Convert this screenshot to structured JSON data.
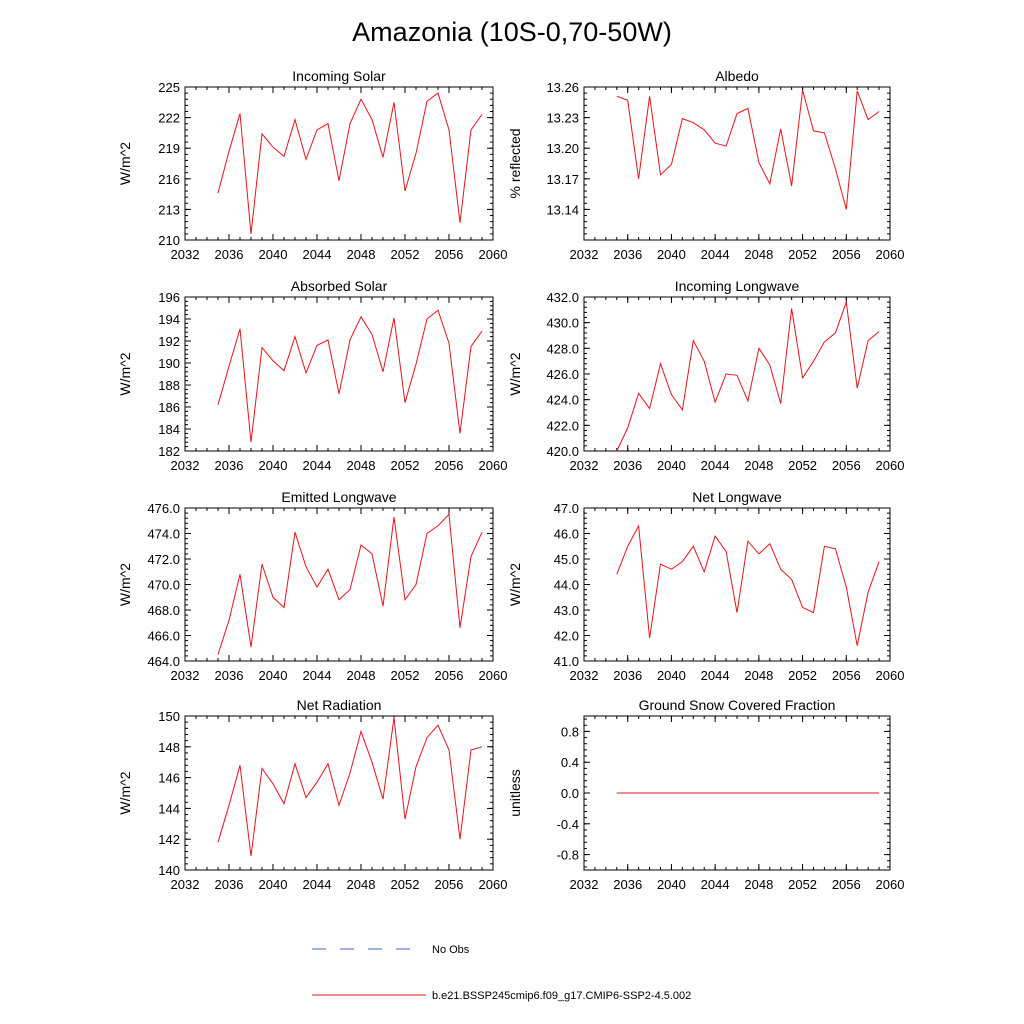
{
  "figure": {
    "title": "Amazonia (10S-0,70-50W)",
    "line_color": "#e8131a",
    "obs_color": "#3a5fcd"
  },
  "legend": {
    "entries": [
      {
        "label": "No Obs",
        "style": "dashed"
      },
      {
        "label": "b.e21.BSSP245cmip6.f09_g17.CMIP6-SSP2-4.5.002",
        "style": "solid"
      }
    ]
  },
  "chart_data": [
    {
      "type": "line",
      "title": "Incoming Solar",
      "ylabel": "W/m^2",
      "xlim": [
        2032,
        2060
      ],
      "xticks": [
        2032,
        2036,
        2040,
        2044,
        2048,
        2052,
        2056,
        2060
      ],
      "ylim": [
        210,
        225
      ],
      "yticks": [
        210,
        213,
        216,
        219,
        222,
        225
      ],
      "ydec": 0,
      "x": [
        2035,
        2036,
        2037,
        2038,
        2039,
        2040,
        2041,
        2042,
        2043,
        2044,
        2045,
        2046,
        2047,
        2048,
        2049,
        2050,
        2051,
        2052,
        2053,
        2054,
        2055,
        2056,
        2057,
        2058,
        2059
      ],
      "y": [
        214.6,
        218.7,
        222.4,
        210.6,
        220.4,
        219.1,
        218.2,
        221.8,
        217.9,
        220.8,
        221.4,
        215.8,
        221.4,
        223.8,
        221.8,
        218.1,
        223.5,
        214.8,
        218.5,
        223.6,
        224.4,
        220.8,
        211.7,
        220.8,
        222.3
      ]
    },
    {
      "type": "line",
      "title": "Albedo",
      "ylabel": "% reflected",
      "xlim": [
        2032,
        2060
      ],
      "xticks": [
        2032,
        2036,
        2040,
        2044,
        2048,
        2052,
        2056,
        2060
      ],
      "ylim": [
        13.11,
        13.26
      ],
      "yticks": [
        13.14,
        13.17,
        13.2,
        13.23,
        13.26
      ],
      "ydec": 2,
      "x": [
        2035,
        2036,
        2037,
        2038,
        2039,
        2040,
        2041,
        2042,
        2043,
        2044,
        2045,
        2046,
        2047,
        2048,
        2049,
        2050,
        2051,
        2052,
        2053,
        2054,
        2055,
        2056,
        2057,
        2058,
        2059
      ],
      "y": [
        13.251,
        13.247,
        13.17,
        13.251,
        13.174,
        13.184,
        13.229,
        13.225,
        13.218,
        13.205,
        13.202,
        13.234,
        13.239,
        13.186,
        13.165,
        13.219,
        13.163,
        13.257,
        13.217,
        13.215,
        13.18,
        13.14,
        13.256,
        13.228,
        13.236
      ]
    },
    {
      "type": "line",
      "title": "Absorbed Solar",
      "ylabel": "W/m^2",
      "xlim": [
        2032,
        2060
      ],
      "xticks": [
        2032,
        2036,
        2040,
        2044,
        2048,
        2052,
        2056,
        2060
      ],
      "ylim": [
        182,
        196
      ],
      "yticks": [
        182,
        184,
        186,
        188,
        190,
        192,
        194,
        196
      ],
      "ydec": 0,
      "x": [
        2035,
        2036,
        2037,
        2038,
        2039,
        2040,
        2041,
        2042,
        2043,
        2044,
        2045,
        2046,
        2047,
        2048,
        2049,
        2050,
        2051,
        2052,
        2053,
        2054,
        2055,
        2056,
        2057,
        2058,
        2059
      ],
      "y": [
        186.2,
        189.7,
        193.1,
        182.8,
        191.4,
        190.2,
        189.3,
        192.4,
        189.1,
        191.6,
        192.1,
        187.2,
        192.1,
        194.2,
        192.6,
        189.2,
        194.1,
        186.4,
        189.9,
        194.0,
        194.8,
        191.8,
        183.6,
        191.5,
        192.9
      ]
    },
    {
      "type": "line",
      "title": "Incoming Longwave",
      "ylabel": "W/m^2",
      "xlim": [
        2032,
        2060
      ],
      "xticks": [
        2032,
        2036,
        2040,
        2044,
        2048,
        2052,
        2056,
        2060
      ],
      "ylim": [
        420,
        432
      ],
      "yticks": [
        420,
        422,
        424,
        426,
        428,
        430,
        432
      ],
      "ydec": 1,
      "x": [
        2035,
        2036,
        2037,
        2038,
        2039,
        2040,
        2041,
        2042,
        2043,
        2044,
        2045,
        2046,
        2047,
        2048,
        2049,
        2050,
        2051,
        2052,
        2053,
        2054,
        2055,
        2056,
        2057,
        2058,
        2059
      ],
      "y": [
        420.0,
        421.8,
        424.5,
        423.3,
        426.8,
        424.4,
        423.2,
        428.6,
        427.0,
        423.8,
        426.0,
        425.9,
        423.9,
        428.0,
        426.7,
        423.7,
        431.1,
        425.7,
        427.0,
        428.5,
        429.2,
        431.6,
        424.9,
        428.6,
        429.3
      ]
    },
    {
      "type": "line",
      "title": "Emitted Longwave",
      "ylabel": "W/m^2",
      "xlim": [
        2032,
        2060
      ],
      "xticks": [
        2032,
        2036,
        2040,
        2044,
        2048,
        2052,
        2056,
        2060
      ],
      "ylim": [
        464,
        476
      ],
      "yticks": [
        464,
        466,
        468,
        470,
        472,
        474,
        476
      ],
      "ydec": 1,
      "x": [
        2035,
        2036,
        2037,
        2038,
        2039,
        2040,
        2041,
        2042,
        2043,
        2044,
        2045,
        2046,
        2047,
        2048,
        2049,
        2050,
        2051,
        2052,
        2053,
        2054,
        2055,
        2056,
        2057,
        2058,
        2059
      ],
      "y": [
        464.5,
        467.2,
        470.8,
        465.1,
        471.6,
        469.0,
        468.2,
        474.1,
        471.4,
        469.8,
        471.2,
        468.8,
        469.6,
        473.1,
        472.4,
        468.3,
        475.3,
        468.8,
        470.0,
        474.0,
        474.6,
        475.5,
        466.6,
        472.2,
        474.1
      ]
    },
    {
      "type": "line",
      "title": "Net Longwave",
      "ylabel": "W/m^2",
      "xlim": [
        2032,
        2060
      ],
      "xticks": [
        2032,
        2036,
        2040,
        2044,
        2048,
        2052,
        2056,
        2060
      ],
      "ylim": [
        41,
        47
      ],
      "yticks": [
        41,
        42,
        43,
        44,
        45,
        46,
        47
      ],
      "ydec": 1,
      "x": [
        2035,
        2036,
        2037,
        2038,
        2039,
        2040,
        2041,
        2042,
        2043,
        2044,
        2045,
        2046,
        2047,
        2048,
        2049,
        2050,
        2051,
        2052,
        2053,
        2054,
        2055,
        2056,
        2057,
        2058,
        2059
      ],
      "y": [
        44.4,
        45.5,
        46.3,
        41.9,
        44.8,
        44.6,
        44.9,
        45.5,
        44.5,
        45.9,
        45.3,
        42.9,
        45.7,
        45.2,
        45.6,
        44.6,
        44.2,
        43.1,
        42.9,
        45.5,
        45.4,
        43.9,
        41.6,
        43.7,
        44.9
      ]
    },
    {
      "type": "line",
      "title": "Net Radiation",
      "ylabel": "W/m^2",
      "xlim": [
        2032,
        2060
      ],
      "xticks": [
        2032,
        2036,
        2040,
        2044,
        2048,
        2052,
        2056,
        2060
      ],
      "ylim": [
        140,
        150
      ],
      "yticks": [
        140,
        142,
        144,
        146,
        148,
        150
      ],
      "ydec": 0,
      "x": [
        2035,
        2036,
        2037,
        2038,
        2039,
        2040,
        2041,
        2042,
        2043,
        2044,
        2045,
        2046,
        2047,
        2048,
        2049,
        2050,
        2051,
        2052,
        2053,
        2054,
        2055,
        2056,
        2057,
        2058,
        2059
      ],
      "y": [
        141.8,
        144.2,
        146.8,
        140.9,
        146.6,
        145.6,
        144.3,
        146.9,
        144.7,
        145.7,
        146.9,
        144.2,
        146.3,
        149.0,
        147.0,
        144.6,
        149.9,
        143.3,
        146.7,
        148.6,
        149.4,
        147.8,
        142.0,
        147.8,
        148.0
      ]
    },
    {
      "type": "line",
      "title": "Ground Snow Covered Fraction",
      "ylabel": "unitless",
      "xlim": [
        2032,
        2060
      ],
      "xticks": [
        2032,
        2036,
        2040,
        2044,
        2048,
        2052,
        2056,
        2060
      ],
      "ylim": [
        -1.0,
        1.0
      ],
      "yticks": [
        -0.8,
        -0.4,
        0.0,
        0.4,
        0.8
      ],
      "ydec": 1,
      "x": [
        2035,
        2059
      ],
      "y": [
        0.0,
        0.0
      ]
    }
  ]
}
